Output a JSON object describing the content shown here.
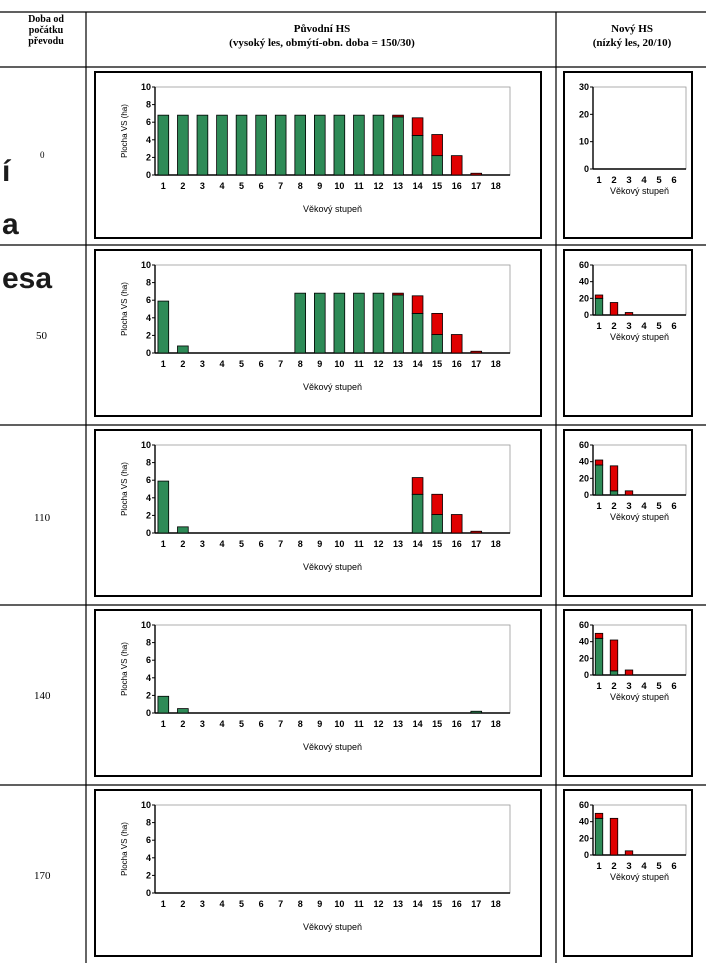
{
  "header": {
    "col1": [
      "Doba od",
      "počátku",
      "převodu"
    ],
    "col2": [
      "Původní HS",
      "(vysoký les, obmýtí-obn. doba = 150/30)"
    ],
    "col3": [
      "Nový HS",
      "(nízký les, 20/10)"
    ]
  },
  "background_text": [
    "í",
    "a",
    "esa"
  ],
  "colors": {
    "green": "#2e8b57",
    "red": "#e00000",
    "frame": "#000000",
    "axis": "#000000"
  },
  "chart_data": [
    {
      "type": "bar",
      "stacked": true,
      "panel": "left",
      "row_time": "0",
      "categories": [
        "1",
        "2",
        "3",
        "4",
        "5",
        "6",
        "7",
        "8",
        "9",
        "10",
        "11",
        "12",
        "13",
        "14",
        "15",
        "16",
        "17",
        "18"
      ],
      "series": [
        {
          "values": [
            6.8,
            6.8,
            6.8,
            6.8,
            6.8,
            6.8,
            6.8,
            6.8,
            6.8,
            6.8,
            6.8,
            6.8,
            6.6,
            4.5,
            2.2,
            0,
            0,
            0
          ]
        },
        {
          "values": [
            0,
            0,
            0,
            0,
            0,
            0,
            0,
            0,
            0,
            0,
            0,
            0,
            0.2,
            2.0,
            2.4,
            2.2,
            0.2,
            0
          ]
        }
      ],
      "ylabel": "Plocha VS (ha)",
      "xlabel": "Věkový stupeň",
      "ylim": [
        0,
        10
      ],
      "yticks": [
        "0",
        "2",
        "4",
        "6",
        "8",
        "10"
      ]
    },
    {
      "type": "bar",
      "stacked": true,
      "panel": "right",
      "row_time": "0",
      "categories": [
        "1",
        "2",
        "3",
        "4",
        "5",
        "6"
      ],
      "series": [
        {
          "values": [
            0,
            0,
            0,
            0,
            0,
            0
          ]
        },
        {
          "values": [
            0,
            0,
            0,
            0,
            0,
            0
          ]
        }
      ],
      "xlabel": "Věkový stupeň",
      "ylim": [
        0,
        30
      ],
      "yticks": [
        "0",
        "10",
        "20",
        "30"
      ]
    },
    {
      "type": "bar",
      "stacked": true,
      "panel": "left",
      "row_time": "50",
      "categories": [
        "1",
        "2",
        "3",
        "4",
        "5",
        "6",
        "7",
        "8",
        "9",
        "10",
        "11",
        "12",
        "13",
        "14",
        "15",
        "16",
        "17",
        "18"
      ],
      "series": [
        {
          "values": [
            5.9,
            0.8,
            0,
            0,
            0,
            0,
            0,
            6.8,
            6.8,
            6.8,
            6.8,
            6.8,
            6.6,
            4.5,
            2.1,
            0,
            0,
            0
          ]
        },
        {
          "values": [
            0,
            0,
            0,
            0,
            0,
            0,
            0,
            0,
            0,
            0,
            0,
            0,
            0.2,
            2.0,
            2.4,
            2.1,
            0.2,
            0
          ]
        }
      ],
      "ylabel": "Plocha VS (ha)",
      "xlabel": "Věkový stupeň",
      "ylim": [
        0,
        10
      ],
      "yticks": [
        "0",
        "2",
        "4",
        "6",
        "8",
        "10"
      ]
    },
    {
      "type": "bar",
      "stacked": true,
      "panel": "right",
      "row_time": "50",
      "categories": [
        "1",
        "2",
        "3",
        "4",
        "5",
        "6"
      ],
      "series": [
        {
          "values": [
            20,
            0,
            0,
            0,
            0,
            0
          ]
        },
        {
          "values": [
            4,
            15,
            3,
            0,
            0,
            0
          ]
        }
      ],
      "xlabel": "Věkový stupeň",
      "ylim": [
        0,
        60
      ],
      "yticks": [
        "0",
        "20",
        "40",
        "60"
      ]
    },
    {
      "type": "bar",
      "stacked": true,
      "panel": "left",
      "row_time": "110",
      "categories": [
        "1",
        "2",
        "3",
        "4",
        "5",
        "6",
        "7",
        "8",
        "9",
        "10",
        "11",
        "12",
        "13",
        "14",
        "15",
        "16",
        "17",
        "18"
      ],
      "series": [
        {
          "values": [
            5.9,
            0.7,
            0,
            0,
            0,
            0,
            0,
            0,
            0,
            0,
            0,
            0,
            0,
            4.4,
            2.1,
            0,
            0,
            0
          ]
        },
        {
          "values": [
            0,
            0,
            0,
            0,
            0,
            0,
            0,
            0,
            0,
            0,
            0,
            0,
            0,
            1.9,
            2.3,
            2.1,
            0.2,
            0
          ]
        }
      ],
      "ylabel": "Plocha VS (ha)",
      "xlabel": "Věkový stupeň",
      "ylim": [
        0,
        10
      ],
      "yticks": [
        "0",
        "2",
        "4",
        "6",
        "8",
        "10"
      ]
    },
    {
      "type": "bar",
      "stacked": true,
      "panel": "right",
      "row_time": "110",
      "categories": [
        "1",
        "2",
        "3",
        "4",
        "5",
        "6"
      ],
      "series": [
        {
          "values": [
            36,
            5,
            0,
            0,
            0,
            0
          ]
        },
        {
          "values": [
            6,
            30,
            5,
            0,
            0,
            0
          ]
        }
      ],
      "xlabel": "Věkový stupeň",
      "ylim": [
        0,
        60
      ],
      "yticks": [
        "0",
        "20",
        "40",
        "60"
      ]
    },
    {
      "type": "bar",
      "stacked": true,
      "panel": "left",
      "row_time": "140",
      "categories": [
        "1",
        "2",
        "3",
        "4",
        "5",
        "6",
        "7",
        "8",
        "9",
        "10",
        "11",
        "12",
        "13",
        "14",
        "15",
        "16",
        "17",
        "18"
      ],
      "series": [
        {
          "values": [
            1.9,
            0.5,
            0,
            0,
            0,
            0,
            0,
            0,
            0,
            0,
            0,
            0,
            0,
            0,
            0,
            0,
            0.2,
            0
          ]
        },
        {
          "values": [
            0,
            0,
            0,
            0,
            0,
            0,
            0,
            0,
            0,
            0,
            0,
            0,
            0,
            0,
            0,
            0,
            0,
            0
          ]
        }
      ],
      "ylabel": "Plocha VS (ha)",
      "xlabel": "Věkový stupeň",
      "ylim": [
        0,
        10
      ],
      "yticks": [
        "0",
        "2",
        "4",
        "6",
        "8",
        "10"
      ]
    },
    {
      "type": "bar",
      "stacked": true,
      "panel": "right",
      "row_time": "140",
      "categories": [
        "1",
        "2",
        "3",
        "4",
        "5",
        "6"
      ],
      "series": [
        {
          "values": [
            44,
            5,
            0,
            0,
            0,
            0
          ]
        },
        {
          "values": [
            6,
            37,
            6,
            0,
            0,
            0
          ]
        }
      ],
      "xlabel": "Věkový stupeň",
      "ylim": [
        0,
        60
      ],
      "yticks": [
        "0",
        "20",
        "40",
        "60"
      ]
    },
    {
      "type": "bar",
      "stacked": true,
      "panel": "left",
      "row_time": "170",
      "categories": [
        "1",
        "2",
        "3",
        "4",
        "5",
        "6",
        "7",
        "8",
        "9",
        "10",
        "11",
        "12",
        "13",
        "14",
        "15",
        "16",
        "17",
        "18"
      ],
      "series": [
        {
          "values": [
            0,
            0,
            0,
            0,
            0,
            0,
            0,
            0,
            0,
            0,
            0,
            0,
            0,
            0,
            0,
            0,
            0,
            0
          ]
        },
        {
          "values": [
            0,
            0,
            0,
            0,
            0,
            0,
            0,
            0,
            0,
            0,
            0,
            0,
            0,
            0,
            0,
            0,
            0,
            0
          ]
        }
      ],
      "ylabel": "Plocha VS (ha)",
      "xlabel": "Věkový stupeň",
      "ylim": [
        0,
        10
      ],
      "yticks": [
        "0",
        "2",
        "4",
        "6",
        "8",
        "10"
      ]
    },
    {
      "type": "bar",
      "stacked": true,
      "panel": "right",
      "row_time": "170",
      "categories": [
        "1",
        "2",
        "3",
        "4",
        "5",
        "6"
      ],
      "series": [
        {
          "values": [
            44,
            0,
            0,
            0,
            0,
            0
          ]
        },
        {
          "values": [
            6,
            44,
            5,
            0,
            0,
            0
          ]
        }
      ],
      "xlabel": "Věkový stupeň",
      "ylim": [
        0,
        60
      ],
      "yticks": [
        "0",
        "20",
        "40",
        "60"
      ]
    }
  ]
}
